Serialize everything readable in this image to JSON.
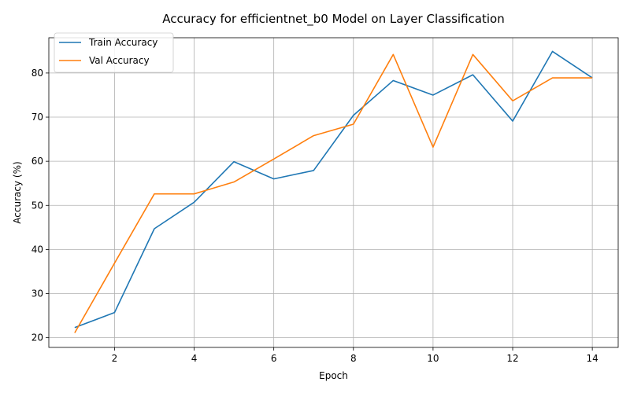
{
  "chart_data": {
    "type": "line",
    "title": "Accuracy for efficientnet_b0 Model on Layer Classification",
    "xlabel": "Epoch",
    "ylabel": "Accuracy (%)",
    "xlim": [
      0.35,
      14.65
    ],
    "ylim": [
      17.8,
      88.0
    ],
    "xticks": [
      2,
      4,
      6,
      8,
      10,
      12,
      14
    ],
    "yticks": [
      20,
      30,
      40,
      50,
      60,
      70,
      80
    ],
    "grid": true,
    "legend_position": "top-left",
    "x": [
      1,
      2,
      3,
      4,
      5,
      6,
      7,
      8,
      9,
      10,
      11,
      12,
      13,
      14
    ],
    "series": [
      {
        "name": "Train Accuracy",
        "color": "#1f77b4",
        "values": [
          22.3,
          25.7,
          44.7,
          50.7,
          59.9,
          56.0,
          57.9,
          70.4,
          78.3,
          75.0,
          79.6,
          69.1,
          84.9,
          78.9
        ]
      },
      {
        "name": "Val Accuracy",
        "color": "#ff7f0e",
        "values": [
          21.1,
          36.9,
          52.6,
          52.6,
          55.3,
          60.5,
          65.8,
          68.4,
          84.2,
          63.2,
          84.2,
          73.7,
          78.9,
          78.9
        ]
      }
    ]
  }
}
